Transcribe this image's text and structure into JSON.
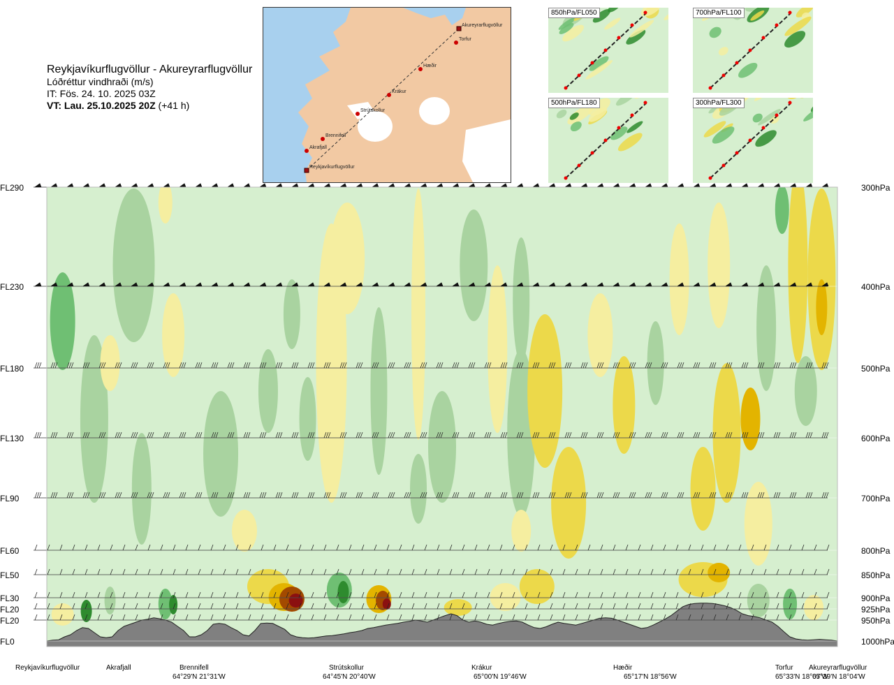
{
  "header": {
    "route_title": "Reykjavíkurflugvöllur - Akureyrarflugvöllur",
    "variable": "Lóðréttur vindhraði (m/s)",
    "init_time": "IT: Fös. 24. 10. 2025 03Z",
    "valid_bold": "VT: Lau. 25.10.2025 20Z",
    "valid_offset": "(+41 h)"
  },
  "route_map": {
    "points": [
      {
        "name": "Akureyrarflugvöllur",
        "kind": "airport"
      },
      {
        "name": "Torfur",
        "kind": "waypoint"
      },
      {
        "name": "Hæðir",
        "kind": "waypoint"
      },
      {
        "name": "Krákur",
        "kind": "waypoint"
      },
      {
        "name": "Strútskollur",
        "kind": "waypoint"
      },
      {
        "name": "Brennifell",
        "kind": "waypoint"
      },
      {
        "name": "Akrafjall",
        "kind": "waypoint"
      },
      {
        "name": "Reykjavíkurflugvöllur",
        "kind": "airport"
      }
    ],
    "colors": {
      "sea": "#a8d0ee",
      "land": "#f2c9a3",
      "ice": "#ffffff",
      "route": "#cc0000"
    }
  },
  "mini_maps": [
    {
      "label": "850hPa/FL050"
    },
    {
      "label": "700hPa/FL100"
    },
    {
      "label": "500hPa/FL180"
    },
    {
      "label": "300hPa/FL300"
    }
  ],
  "chart_data": {
    "type": "heatmap",
    "title": "Reykjavíkurflugvöllur - Akureyrarflugvöllur",
    "variable": "Lóðréttur vindhraði (m/s)",
    "levels": [
      {
        "fl": "FL290",
        "pressure": "300hPa"
      },
      {
        "fl": "FL230",
        "pressure": "400hPa"
      },
      {
        "fl": "FL180",
        "pressure": "500hPa"
      },
      {
        "fl": "FL130",
        "pressure": "600hPa"
      },
      {
        "fl": "FL90",
        "pressure": "700hPa"
      },
      {
        "fl": "FL60",
        "pressure": "800hPa"
      },
      {
        "fl": "FL50",
        "pressure": "850hPa"
      },
      {
        "fl": "FL30",
        "pressure": "900hPa"
      },
      {
        "fl": "FL20",
        "pressure": "925hPa"
      },
      {
        "fl": "FL20",
        "pressure": "950hPa"
      },
      {
        "fl": "FL0",
        "pressure": "1000hPa"
      }
    ],
    "route_points": [
      {
        "name": "Reykjavíkurflugvöllur",
        "coord": "",
        "dist": 0.0
      },
      {
        "name": "Akrafjall",
        "coord": "",
        "dist": 0.08
      },
      {
        "name": "Brennifell",
        "coord": "64°29'N 21°31'W",
        "dist": 0.19
      },
      {
        "name": "Strútskollur",
        "coord": "64°45'N 20°40'W",
        "dist": 0.38
      },
      {
        "name": "Krákur",
        "coord": "65°00'N 19°46'W",
        "dist": 0.57
      },
      {
        "name": "Hæðir",
        "coord": "65°17'N 18°56'W",
        "dist": 0.75
      },
      {
        "name": "Torfur",
        "coord": "65°33'N 18°07'W",
        "dist": 0.96
      },
      {
        "name": "Akureyrarflugvöllur",
        "coord": "65°39'N 18°04'W",
        "dist": 1.0
      }
    ],
    "terrain_profile_hpa": [
      1000,
      998,
      997,
      990,
      985,
      975,
      968,
      970,
      980,
      990,
      992,
      990,
      975,
      965,
      960,
      955,
      950,
      948,
      945,
      947,
      950,
      955,
      965,
      975,
      990,
      990,
      985,
      975,
      960,
      958,
      960,
      968,
      975,
      985,
      988,
      975,
      958,
      957,
      958,
      965,
      972,
      985,
      990,
      992,
      993,
      992,
      990,
      988,
      987,
      985,
      983,
      980,
      978,
      975,
      970,
      968,
      965,
      962,
      960,
      958,
      955,
      953,
      950,
      952,
      955,
      950,
      945,
      940,
      936,
      940,
      950,
      955,
      952,
      955,
      960,
      962,
      958,
      955,
      953,
      952,
      955,
      962,
      968,
      970,
      966,
      960,
      955,
      958,
      960,
      962,
      958,
      954,
      950,
      946,
      945,
      946,
      950,
      955,
      960,
      965,
      970,
      968,
      962,
      955,
      948,
      940,
      930,
      920,
      915,
      913,
      912,
      912,
      913,
      915,
      918,
      922,
      928,
      936,
      940,
      942,
      945,
      950,
      955,
      965,
      978,
      990,
      995,
      997,
      998,
      997,
      996,
      997,
      998,
      1000
    ],
    "colors": {
      "strong_sink": "#2e8b2e",
      "sink": "#6fbf73",
      "weak_sink": "#a9d3a0",
      "neutral": "#d6efcf",
      "weak_rise": "#f5eea0",
      "rise": "#ecd94a",
      "strong_rise": "#e3b400",
      "very_strong_rise": "#a34a00",
      "extreme_rise": "#8b1010",
      "terrain": "#808080"
    },
    "grid": true
  }
}
